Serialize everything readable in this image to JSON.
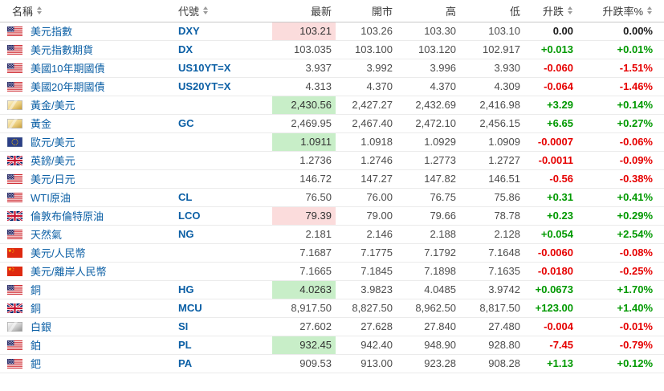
{
  "table": {
    "columns": [
      {
        "label": "名稱",
        "sortable": true
      },
      {
        "label": "代號",
        "sortable": true
      },
      {
        "label": "最新",
        "sortable": false
      },
      {
        "label": "開市",
        "sortable": false
      },
      {
        "label": "高",
        "sortable": false
      },
      {
        "label": "低",
        "sortable": false
      },
      {
        "label": "升跌",
        "sortable": true
      },
      {
        "label": "升跌率%",
        "sortable": true
      }
    ],
    "rows": [
      {
        "icon": "us-flag-icon",
        "name": "美元指數",
        "code": "DXY",
        "last": "103.21",
        "last_highlight": "down",
        "open": "103.26",
        "high": "103.30",
        "low": "103.10",
        "change": "0.00",
        "change_pct": "0.00%",
        "direction": "flat"
      },
      {
        "icon": "us-flag-icon",
        "name": "美元指數期貨",
        "code": "DX",
        "last": "103.035",
        "last_highlight": null,
        "open": "103.100",
        "high": "103.120",
        "low": "102.917",
        "change": "+0.013",
        "change_pct": "+0.01%",
        "direction": "up"
      },
      {
        "icon": "us-flag-icon",
        "name": "美國10年期國債",
        "code": "US10YT=X",
        "last": "3.937",
        "last_highlight": null,
        "open": "3.992",
        "high": "3.996",
        "low": "3.930",
        "change": "-0.060",
        "change_pct": "-1.51%",
        "direction": "down"
      },
      {
        "icon": "us-flag-icon",
        "name": "美國20年期國債",
        "code": "US20YT=X",
        "last": "4.313",
        "last_highlight": null,
        "open": "4.370",
        "high": "4.370",
        "low": "4.309",
        "change": "-0.064",
        "change_pct": "-1.46%",
        "direction": "down"
      },
      {
        "icon": "gold-bar-icon",
        "name": "黃金/美元",
        "code": "",
        "last": "2,430.56",
        "last_highlight": "up",
        "open": "2,427.27",
        "high": "2,432.69",
        "low": "2,416.98",
        "change": "+3.29",
        "change_pct": "+0.14%",
        "direction": "up"
      },
      {
        "icon": "gold-bar-icon",
        "name": "黃金",
        "code": "GC",
        "last": "2,469.95",
        "last_highlight": null,
        "open": "2,467.40",
        "high": "2,472.10",
        "low": "2,456.15",
        "change": "+6.65",
        "change_pct": "+0.27%",
        "direction": "up"
      },
      {
        "icon": "eu-flag-icon",
        "name": "歐元/美元",
        "code": "",
        "last": "1.0911",
        "last_highlight": "up",
        "open": "1.0918",
        "high": "1.0929",
        "low": "1.0909",
        "change": "-0.0007",
        "change_pct": "-0.06%",
        "direction": "down"
      },
      {
        "icon": "uk-flag-icon",
        "name": "英鎊/美元",
        "code": "",
        "last": "1.2736",
        "last_highlight": null,
        "open": "1.2746",
        "high": "1.2773",
        "low": "1.2727",
        "change": "-0.0011",
        "change_pct": "-0.09%",
        "direction": "down"
      },
      {
        "icon": "us-flag-icon",
        "name": "美元/日元",
        "code": "",
        "last": "146.72",
        "last_highlight": null,
        "open": "147.27",
        "high": "147.82",
        "low": "146.51",
        "change": "-0.56",
        "change_pct": "-0.38%",
        "direction": "down"
      },
      {
        "icon": "us-flag-icon",
        "name": "WTI原油",
        "code": "CL",
        "last": "76.50",
        "last_highlight": null,
        "open": "76.00",
        "high": "76.75",
        "low": "75.86",
        "change": "+0.31",
        "change_pct": "+0.41%",
        "direction": "up"
      },
      {
        "icon": "uk-flag-icon",
        "name": "倫敦布倫特原油",
        "code": "LCO",
        "last": "79.39",
        "last_highlight": "down",
        "open": "79.00",
        "high": "79.66",
        "low": "78.78",
        "change": "+0.23",
        "change_pct": "+0.29%",
        "direction": "up"
      },
      {
        "icon": "us-flag-icon",
        "name": "天然氣",
        "code": "NG",
        "last": "2.181",
        "last_highlight": null,
        "open": "2.146",
        "high": "2.188",
        "low": "2.128",
        "change": "+0.054",
        "change_pct": "+2.54%",
        "direction": "up"
      },
      {
        "icon": "china-flag-icon",
        "name": "美元/人民幣",
        "code": "",
        "last": "7.1687",
        "last_highlight": null,
        "open": "7.1775",
        "high": "7.1792",
        "low": "7.1648",
        "change": "-0.0060",
        "change_pct": "-0.08%",
        "direction": "down"
      },
      {
        "icon": "china-flag-icon",
        "name": "美元/離岸人民幣",
        "code": "",
        "last": "7.1665",
        "last_highlight": null,
        "open": "7.1845",
        "high": "7.1898",
        "low": "7.1635",
        "change": "-0.0180",
        "change_pct": "-0.25%",
        "direction": "down"
      },
      {
        "icon": "us-flag-icon",
        "name": "銅",
        "code": "HG",
        "last": "4.0263",
        "last_highlight": "up",
        "open": "3.9823",
        "high": "4.0485",
        "low": "3.9742",
        "change": "+0.0673",
        "change_pct": "+1.70%",
        "direction": "up"
      },
      {
        "icon": "uk-flag-icon",
        "name": "銅",
        "code": "MCU",
        "last": "8,917.50",
        "last_highlight": null,
        "open": "8,827.50",
        "high": "8,962.50",
        "low": "8,817.50",
        "change": "+123.00",
        "change_pct": "+1.40%",
        "direction": "up"
      },
      {
        "icon": "silver-bar-icon",
        "name": "白銀",
        "code": "SI",
        "last": "27.602",
        "last_highlight": null,
        "open": "27.628",
        "high": "27.840",
        "low": "27.480",
        "change": "-0.004",
        "change_pct": "-0.01%",
        "direction": "down"
      },
      {
        "icon": "us-flag-icon",
        "name": "鉑",
        "code": "PL",
        "last": "932.45",
        "last_highlight": "up",
        "open": "942.40",
        "high": "948.90",
        "low": "928.80",
        "change": "-7.45",
        "change_pct": "-0.79%",
        "direction": "down"
      },
      {
        "icon": "us-flag-icon",
        "name": "鈀",
        "code": "PA",
        "last": "909.53",
        "last_highlight": null,
        "open": "913.00",
        "high": "923.28",
        "low": "908.28",
        "change": "+1.13",
        "change_pct": "+0.12%",
        "direction": "up"
      }
    ]
  },
  "colors": {
    "up_text": "#009900",
    "down_text": "#e60000",
    "flat_text": "#1a1a1a",
    "up_highlight_bg": "#c8eec8",
    "down_highlight_bg": "#fbdcdc",
    "link_text": "#0b5fa5"
  }
}
